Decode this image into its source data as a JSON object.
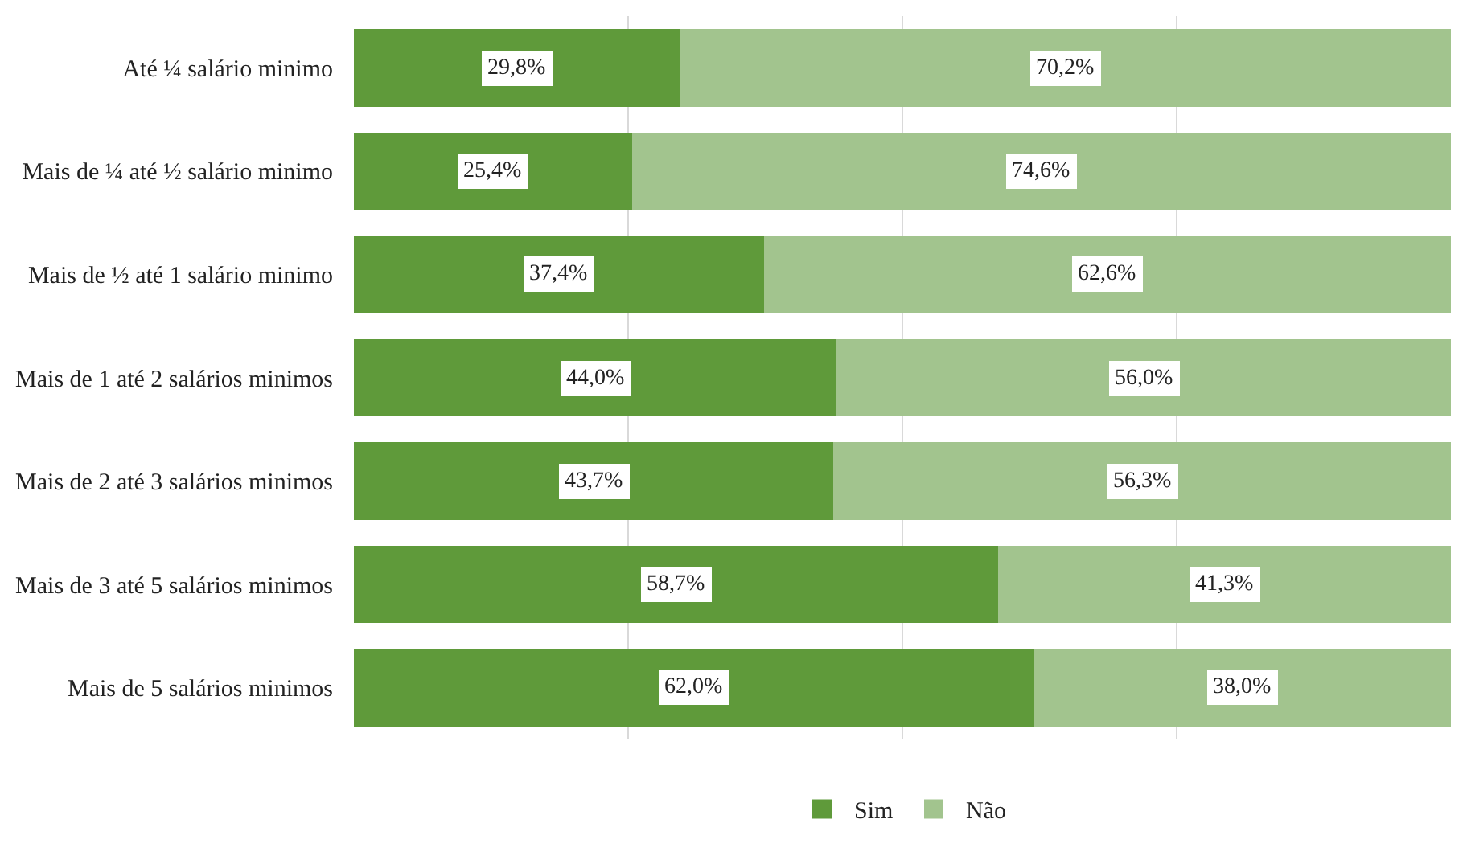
{
  "chart_data": {
    "type": "bar",
    "orientation": "horizontal",
    "stacked": true,
    "categories": [
      "Até ¼ salário minimo",
      "Mais de ¼ até ½ salário minimo",
      "Mais de ½ até 1 salário minimo",
      "Mais de 1 até 2 salários minimos",
      "Mais de 2 até 3 salários minimos",
      "Mais de 3 até 5 salários minimos",
      "Mais de 5 salários minimos"
    ],
    "series": [
      {
        "name": "Sim",
        "color": "#5f9a3a",
        "values": [
          29.8,
          25.4,
          37.4,
          44.0,
          43.7,
          58.7,
          62.0
        ],
        "value_labels": [
          "29,8%",
          "25,4%",
          "37,4%",
          "44,0%",
          "43,7%",
          "58,7%",
          "62,0%"
        ]
      },
      {
        "name": "Não",
        "color": "#a2c48e",
        "values": [
          70.2,
          74.6,
          62.6,
          56.0,
          56.3,
          41.3,
          38.0
        ],
        "value_labels": [
          "70,2%",
          "74,6%",
          "62,6%",
          "56,0%",
          "56,3%",
          "41,3%",
          "38,0%"
        ]
      }
    ],
    "xlim": [
      0,
      100
    ],
    "xticks": [
      {
        "value": 25,
        "label": null
      },
      {
        "value": 50,
        "label": null
      },
      {
        "value": 75,
        "label": null
      }
    ],
    "grid": "x",
    "tick_labels": "y",
    "legend": "bottom"
  }
}
